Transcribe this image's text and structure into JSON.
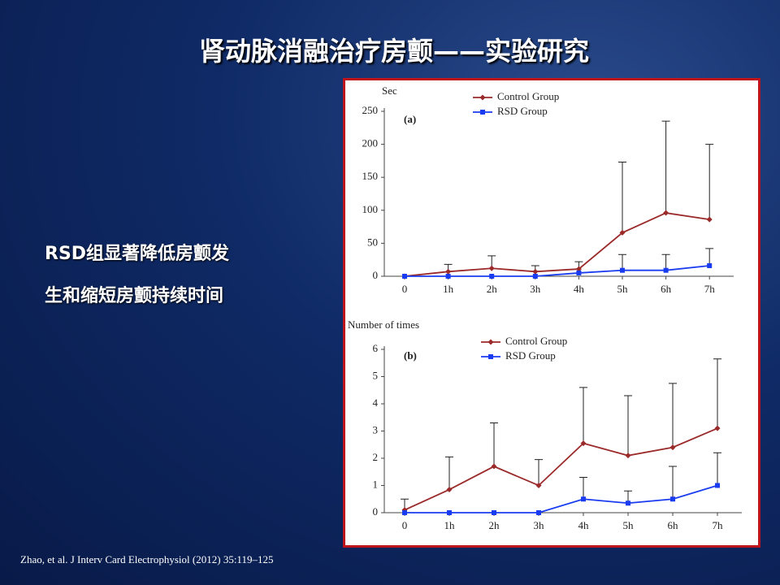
{
  "title": "肾动脉消融治疗房颤——实验研究",
  "body_lines": [
    "RSD组显著降低房颤发",
    "生和缩短房颤持续时间"
  ],
  "citation": "Zhao, et al. J Interv Card Electrophysiol (2012) 35:119–125",
  "chart_data": [
    {
      "type": "line",
      "panel_label": "(a)",
      "y_label": "Sec",
      "categories": [
        "0",
        "1h",
        "2h",
        "3h",
        "4h",
        "5h",
        "6h",
        "7h"
      ],
      "ylim": [
        0,
        250
      ],
      "yticks": [
        0,
        50,
        100,
        150,
        200,
        250
      ],
      "series": [
        {
          "name": "Control Group",
          "color": "#9b2a2a",
          "marker": "diamond",
          "values": [
            0,
            7,
            12,
            7,
            11,
            66,
            96,
            86
          ],
          "errors": [
            null,
            11,
            19,
            9,
            11,
            107,
            139,
            114
          ]
        },
        {
          "name": "RSD Group",
          "color": "#1a3cf0",
          "marker": "square",
          "values": [
            0,
            0,
            0,
            0,
            5,
            9,
            9,
            16
          ],
          "errors": [
            null,
            null,
            null,
            null,
            null,
            24,
            24,
            26
          ]
        }
      ]
    },
    {
      "type": "line",
      "panel_label": "(b)",
      "y_label": "Number of times",
      "categories": [
        "0",
        "1h",
        "2h",
        "3h",
        "4h",
        "5h",
        "6h",
        "7h"
      ],
      "ylim": [
        0,
        6
      ],
      "yticks": [
        0,
        1,
        2,
        3,
        4,
        5,
        6
      ],
      "series": [
        {
          "name": "Control Group",
          "color": "#9b2a2a",
          "marker": "diamond",
          "values": [
            0.1,
            0.85,
            1.7,
            1.0,
            2.55,
            2.1,
            2.4,
            3.1
          ],
          "errors": [
            0.4,
            1.2,
            1.6,
            0.95,
            2.05,
            2.2,
            2.35,
            2.55
          ]
        },
        {
          "name": "RSD Group",
          "color": "#1a3cf0",
          "marker": "square",
          "values": [
            0,
            0,
            0,
            0,
            0.5,
            0.35,
            0.5,
            1.0
          ],
          "errors": [
            null,
            null,
            null,
            null,
            0.8,
            0.45,
            1.2,
            1.2
          ]
        }
      ]
    }
  ]
}
